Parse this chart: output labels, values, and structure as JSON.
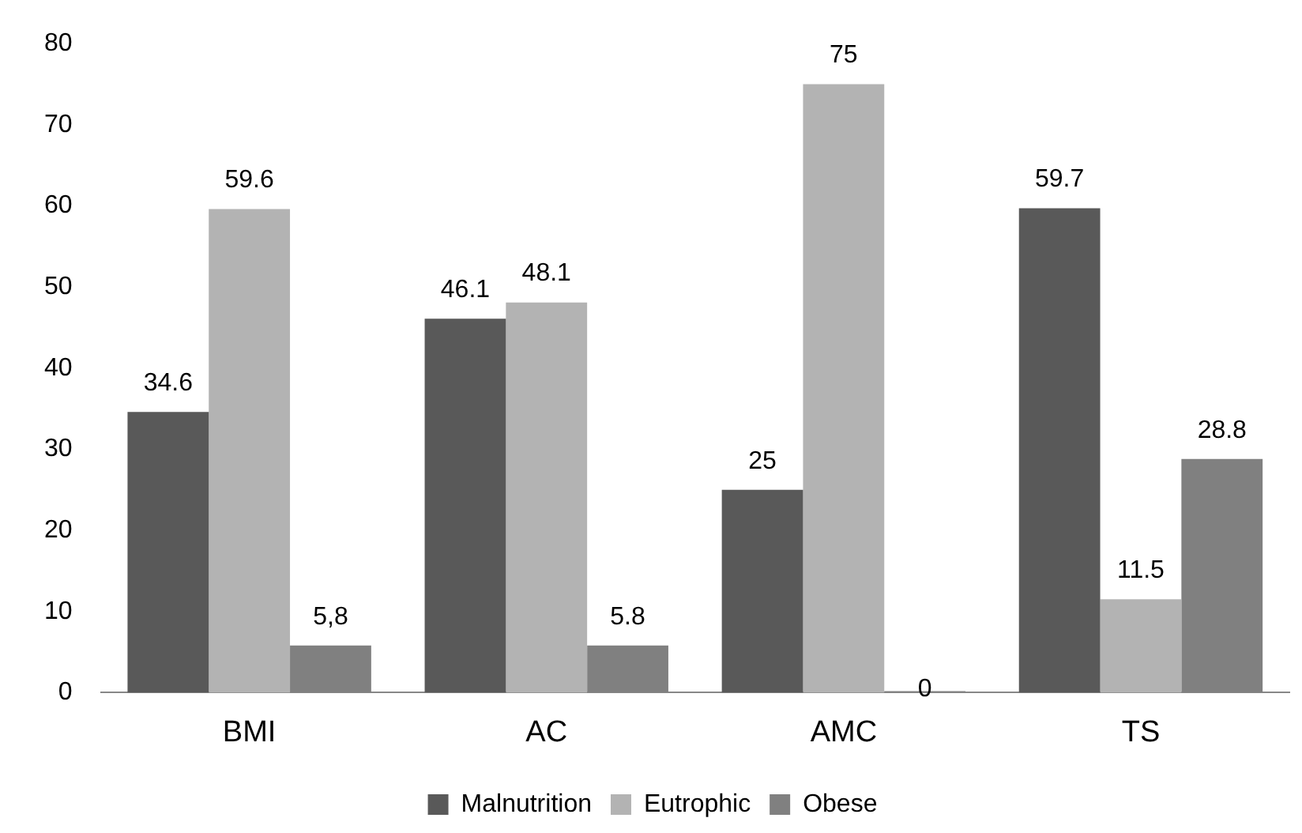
{
  "chart_data": {
    "type": "bar",
    "categories": [
      "BMI",
      "AC",
      "AMC",
      "TS"
    ],
    "series": [
      {
        "name": "Malnutrition",
        "color": "#595959",
        "values": [
          34.6,
          46.1,
          25,
          59.7
        ],
        "value_labels": [
          "34.6",
          "46.1",
          "25",
          "59.7"
        ]
      },
      {
        "name": "Eutrophic",
        "color": "#b3b3b3",
        "values": [
          59.6,
          48.1,
          75,
          11.5
        ],
        "value_labels": [
          "59.6",
          "48.1",
          "75",
          "11.5"
        ]
      },
      {
        "name": "Obese",
        "color": "#808080",
        "values": [
          5.8,
          5.8,
          0,
          28.8
        ],
        "value_labels": [
          "5,8",
          "5.8",
          "0",
          "28.8"
        ]
      }
    ],
    "ylim": [
      0,
      80
    ],
    "yticks": [
      0,
      10,
      20,
      30,
      40,
      50,
      60,
      70,
      80
    ],
    "grid": false,
    "legend": "bottom"
  }
}
